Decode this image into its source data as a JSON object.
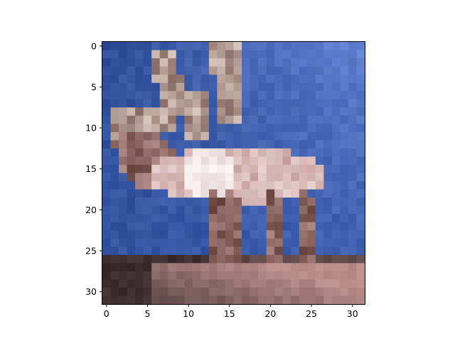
{
  "chart_data": {
    "type": "heatmap",
    "title": "",
    "xlabel": "",
    "ylabel": "",
    "xlim": [
      -0.5,
      31.5
    ],
    "ylim": [
      31.5,
      -0.5
    ],
    "grid": false,
    "legend": "none",
    "x_ticks": [
      0,
      5,
      10,
      15,
      20,
      25,
      30
    ],
    "y_ticks": [
      0,
      5,
      10,
      15,
      20,
      25,
      30
    ],
    "x_tick_labels": [
      "0",
      "5",
      "10",
      "15",
      "20",
      "25",
      "30"
    ],
    "y_tick_labels": [
      "0",
      "5",
      "10",
      "15",
      "20",
      "25",
      "30"
    ],
    "image_size": [
      32,
      32
    ],
    "image_subject": "reindeer",
    "palette": {
      "sky_top_left": "#2f4f9a",
      "sky_top_right": "#5f7fd0",
      "sky_bottom": "#3b5fb2",
      "ground_dark": "#3d2d2f",
      "ground_light": "#b88d8a",
      "body_light": "#e9d3d2",
      "body_mid": "#c49e9c",
      "body_dark": "#6e4a44",
      "highlight": "#f4ecec",
      "antler_light": "#d8c6bb",
      "antler_dark": "#8a6d66"
    }
  }
}
